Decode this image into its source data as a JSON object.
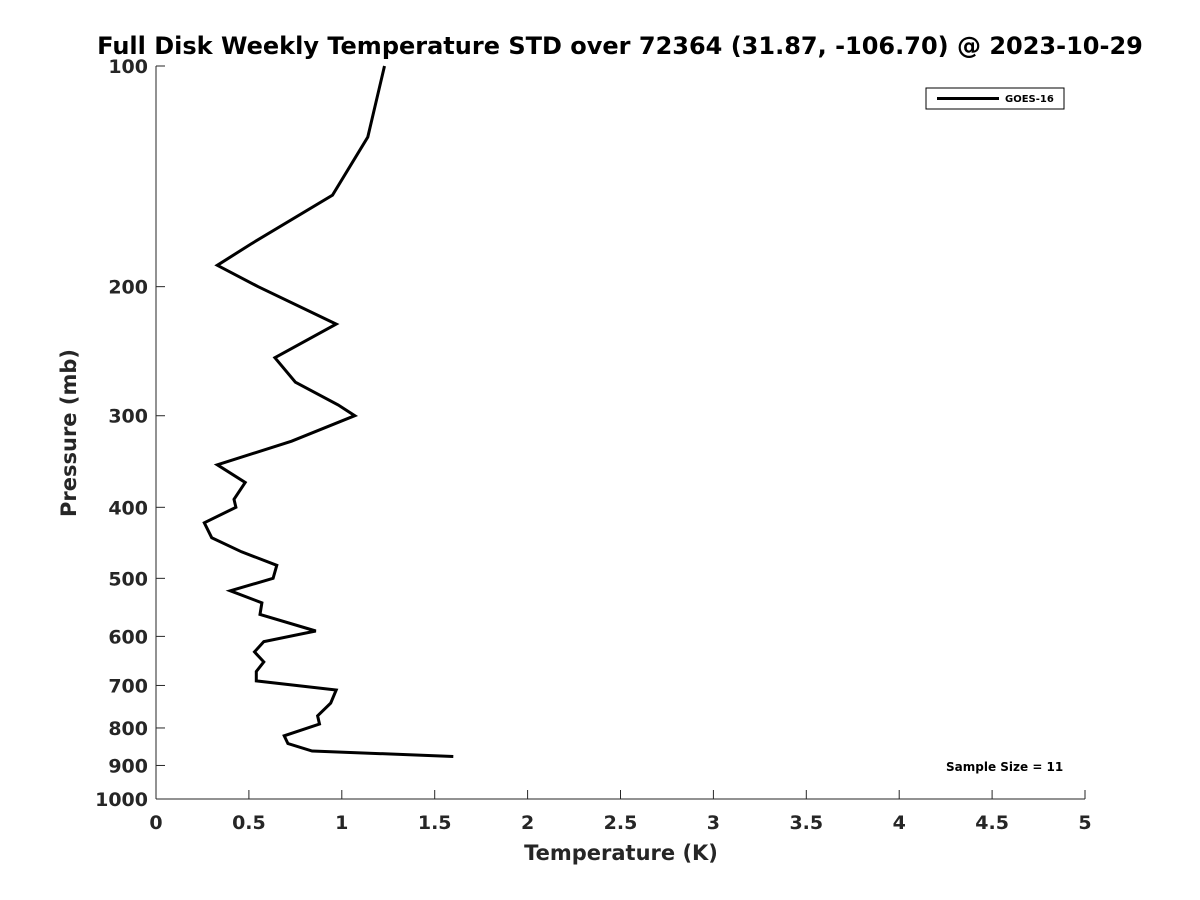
{
  "chart_data": {
    "type": "line",
    "title": "Full Disk Weekly Temperature STD over 72364 (31.87, -106.70) @ 2023-10-29",
    "xlabel": "Temperature (K)",
    "ylabel": "Pressure (mb)",
    "xlim": [
      0,
      5
    ],
    "ylim": [
      100,
      1000
    ],
    "yscale": "log",
    "y_reversed": true,
    "x_ticks": [
      "0",
      "0.5",
      "1",
      "1.5",
      "2",
      "2.5",
      "3",
      "3.5",
      "4",
      "4.5",
      "5"
    ],
    "y_ticks": [
      "100",
      "200",
      "300",
      "400",
      "500",
      "600",
      "700",
      "800",
      "900",
      "1000"
    ],
    "grid": false,
    "legend_position": "top-right",
    "series": [
      {
        "name": "GOES-16",
        "color": "#000000",
        "x": [
          1.23,
          1.14,
          0.95,
          0.51,
          0.33,
          0.55,
          0.97,
          0.64,
          0.75,
          0.98,
          1.07,
          0.73,
          0.33,
          0.48,
          0.42,
          0.43,
          0.26,
          0.3,
          0.46,
          0.65,
          0.63,
          0.4,
          0.57,
          0.56,
          0.86,
          0.58,
          0.53,
          0.58,
          0.54,
          0.54,
          0.97,
          0.94,
          0.87,
          0.88,
          0.69,
          0.71,
          0.84,
          1.6
        ],
        "y": [
          100,
          125,
          150,
          175,
          187,
          200,
          225,
          250,
          270,
          290,
          300,
          325,
          350,
          370,
          390,
          400,
          420,
          440,
          460,
          480,
          500,
          520,
          540,
          560,
          590,
          610,
          630,
          650,
          670,
          690,
          710,
          740,
          770,
          790,
          820,
          840,
          860,
          875
        ]
      }
    ],
    "annotations": [
      "Sample Size = 11"
    ]
  }
}
